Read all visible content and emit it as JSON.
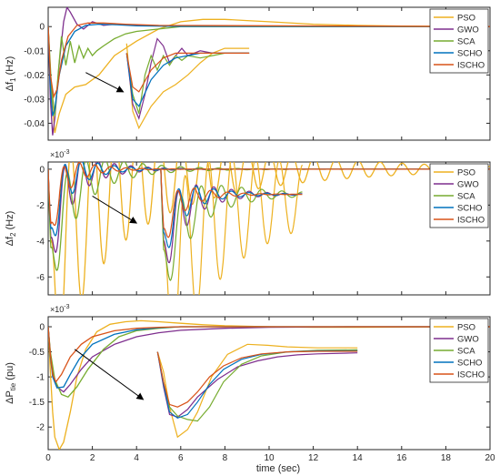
{
  "figure": {
    "xlabel": "time (sec)",
    "colors": {
      "PSO": "#EDB120",
      "GWO": "#7E2F8E",
      "SCA": "#77AC30",
      "SCHO": "#0072BD",
      "ISCHO": "#D95319"
    },
    "legend": [
      "PSO",
      "GWO",
      "SCA",
      "SCHO",
      "ISCHO"
    ]
  },
  "chart_data": [
    {
      "type": "line",
      "ylabel": "Δf1 (Hz)",
      "ylabel_main": "Δf",
      "ylabel_sub": "1",
      "ylabel_unit": " (Hz)",
      "exponent": "",
      "xlim": [
        0,
        20
      ],
      "ylim": [
        -0.047,
        0.008
      ],
      "xticks": [
        0,
        2,
        4,
        6,
        8,
        10,
        12,
        14,
        16,
        18,
        20
      ],
      "yticks": [
        0,
        -0.01,
        -0.02,
        -0.03,
        -0.04
      ],
      "ytick_labels": [
        "0",
        "-0.01",
        "-0.02",
        "-0.03",
        "-0.04"
      ],
      "legend_position": "top-right",
      "series": [
        {
          "name": "PSO",
          "x": [
            0,
            0.15,
            0.3,
            0.5,
            0.8,
            1.2,
            1.7,
            2.3,
            3,
            4,
            5,
            6,
            7,
            8,
            9,
            10,
            12,
            14,
            16,
            20
          ],
          "y": [
            0,
            -0.028,
            -0.044,
            -0.036,
            -0.028,
            -0.025,
            -0.024,
            -0.02,
            -0.012,
            -0.006,
            -0.001,
            0.002,
            0.003,
            0.003,
            0.0025,
            0.002,
            0.001,
            0.0005,
            0.0002,
            0
          ]
        },
        {
          "name": "GWO",
          "x": [
            0,
            0.1,
            0.2,
            0.3,
            0.5,
            0.7,
            0.85,
            1.0,
            1.3,
            1.6,
            2.0,
            2.5,
            3,
            4,
            6,
            20
          ],
          "y": [
            0,
            -0.03,
            -0.045,
            -0.038,
            -0.015,
            0.002,
            0.008,
            0.006,
            0.001,
            -0.001,
            0.002,
            0.0005,
            0.001,
            0.0005,
            0.0002,
            0
          ]
        },
        {
          "name": "SCA",
          "x": [
            0,
            0.15,
            0.3,
            0.45,
            0.6,
            0.8,
            1.0,
            1.2,
            1.4,
            1.6,
            1.8,
            2.0,
            2.2,
            2.5,
            3,
            3.5,
            4,
            5,
            6,
            20
          ],
          "y": [
            0,
            -0.025,
            -0.037,
            -0.02,
            -0.004,
            -0.016,
            -0.006,
            -0.015,
            -0.008,
            -0.013,
            -0.009,
            -0.012,
            -0.01,
            -0.008,
            -0.005,
            -0.003,
            -0.002,
            -0.001,
            0,
            0
          ]
        },
        {
          "name": "SCHO",
          "x": [
            0,
            0.1,
            0.2,
            0.3,
            0.5,
            0.8,
            1.2,
            1.7,
            2.3,
            3,
            4,
            6,
            20
          ],
          "y": [
            0,
            -0.025,
            -0.037,
            -0.034,
            -0.02,
            -0.008,
            -0.002,
            0.0005,
            0.001,
            0.0008,
            0.0003,
            0.0001,
            0
          ]
        },
        {
          "name": "ISCHO",
          "x": [
            0,
            0.1,
            0.25,
            0.4,
            0.6,
            0.9,
            1.3,
            1.8,
            2.5,
            3.5,
            5,
            20
          ],
          "y": [
            0,
            -0.02,
            -0.029,
            -0.026,
            -0.014,
            -0.004,
            0.0005,
            0.0015,
            0.0015,
            0.001,
            0.0005,
            0
          ]
        }
      ],
      "inset": {
        "x0": 3.55,
        "x1": 9.1,
        "series": [
          {
            "name": "PSO",
            "x": [
              0,
              0.05,
              0.1,
              0.2,
              0.3,
              0.4,
              0.5,
              0.6,
              0.7,
              0.8,
              0.9,
              1.0
            ],
            "y": [
              -0.007,
              -0.035,
              -0.042,
              -0.033,
              -0.027,
              -0.024,
              -0.02,
              -0.015,
              -0.011,
              -0.009,
              -0.009,
              -0.009
            ]
          },
          {
            "name": "GWO",
            "x": [
              0,
              0.05,
              0.1,
              0.15,
              0.2,
              0.25,
              0.3,
              0.35,
              0.4,
              0.45,
              0.5,
              0.6,
              0.7,
              0.8,
              0.9,
              1.0
            ],
            "y": [
              -0.011,
              -0.032,
              -0.038,
              -0.028,
              -0.015,
              -0.005,
              -0.008,
              -0.015,
              -0.012,
              -0.009,
              -0.012,
              -0.01,
              -0.011,
              -0.011,
              -0.011,
              -0.011
            ]
          },
          {
            "name": "SCA",
            "x": [
              0,
              0.05,
              0.1,
              0.15,
              0.2,
              0.25,
              0.3,
              0.35,
              0.4,
              0.45,
              0.5,
              0.6,
              0.7,
              0.8,
              0.9,
              1.0
            ],
            "y": [
              -0.011,
              -0.028,
              -0.036,
              -0.02,
              -0.012,
              -0.018,
              -0.012,
              -0.016,
              -0.012,
              -0.014,
              -0.012,
              -0.013,
              -0.012,
              -0.011,
              -0.011,
              -0.011
            ]
          },
          {
            "name": "SCHO",
            "x": [
              0,
              0.05,
              0.1,
              0.2,
              0.3,
              0.4,
              0.5,
              0.6,
              0.7,
              0.8,
              0.9,
              1.0
            ],
            "y": [
              -0.011,
              -0.03,
              -0.033,
              -0.022,
              -0.016,
              -0.013,
              -0.012,
              -0.011,
              -0.011,
              -0.011,
              -0.011,
              -0.011
            ]
          },
          {
            "name": "ISCHO",
            "x": [
              0,
              0.05,
              0.1,
              0.2,
              0.3,
              0.4,
              0.5,
              0.6,
              0.7,
              0.8,
              0.9,
              1.0
            ],
            "y": [
              -0.011,
              -0.025,
              -0.027,
              -0.018,
              -0.013,
              -0.011,
              -0.011,
              -0.011,
              -0.011,
              -0.011,
              -0.011,
              -0.011
            ]
          }
        ],
        "arrow": {
          "from": [
            1.7,
            -0.019
          ],
          "to": [
            3.4,
            -0.027
          ]
        }
      }
    },
    {
      "type": "line",
      "ylabel": "Δf2 (Hz)",
      "ylabel_main": "Δf",
      "ylabel_sub": "2",
      "ylabel_unit": " (Hz)",
      "exponent": "×10^-3",
      "xlim": [
        0,
        20
      ],
      "ylim": [
        -7,
        0.4
      ],
      "xticks": [
        0,
        2,
        4,
        6,
        8,
        10,
        12,
        14,
        16,
        18,
        20
      ],
      "yticks": [
        0,
        -2,
        -4,
        -6
      ],
      "ytick_labels": [
        "0",
        "-2",
        "-4",
        "-6"
      ],
      "legend_position": "top-right",
      "series": [
        {
          "name": "PSO",
          "osc": {
            "base": -7.2,
            "amp": 6.5,
            "freq": 6.0,
            "tau": 1.6,
            "drift": 0.35,
            "decay": 0.18
          }
        },
        {
          "name": "GWO",
          "osc": {
            "base": -5.5,
            "amp": 3.0,
            "freq": 8.0,
            "tau": 0.55,
            "drift": 0.0,
            "decay": 0.7
          }
        },
        {
          "name": "SCA",
          "osc": {
            "base": -6.0,
            "amp": 3.2,
            "freq": 7.0,
            "tau": 0.8,
            "drift": 0.0,
            "decay": 0.5
          }
        },
        {
          "name": "SCHO",
          "osc": {
            "base": -5.0,
            "amp": 2.5,
            "freq": 8.0,
            "tau": 0.45,
            "drift": 0.0,
            "decay": 0.8
          }
        },
        {
          "name": "ISCHO",
          "osc": {
            "base": -4.6,
            "amp": 2.0,
            "freq": 8.5,
            "tau": 0.4,
            "drift": 0.0,
            "decay": 0.9
          }
        }
      ],
      "inset": {
        "x0": 5.1,
        "x1": 11.5,
        "osc": true,
        "arrow": {
          "from": [
            2.0,
            -1.5
          ],
          "to": [
            4.0,
            -3.0
          ]
        }
      }
    },
    {
      "type": "line",
      "ylabel": "ΔPtie (pu)",
      "ylabel_main": "ΔP",
      "ylabel_sub": "tie",
      "ylabel_unit": "  (pu)",
      "exponent": "×10^-3",
      "xlim": [
        0,
        20
      ],
      "ylim": [
        -2.45,
        0.2
      ],
      "xticks": [
        0,
        2,
        4,
        6,
        8,
        10,
        12,
        14,
        16,
        18,
        20
      ],
      "yticks": [
        0,
        -0.5,
        -1,
        -1.5,
        -2
      ],
      "ytick_labels": [
        "0",
        "-0.5",
        "-1",
        "-1.5",
        "-2"
      ],
      "legend_position": "top-right",
      "series": [
        {
          "name": "PSO",
          "x": [
            0,
            0.1,
            0.2,
            0.3,
            0.5,
            0.7,
            1.0,
            1.3,
            1.7,
            2.2,
            2.8,
            3.5,
            4.2,
            5,
            6,
            7,
            8,
            10,
            12,
            14,
            20
          ],
          "y": [
            0,
            -0.9,
            -1.7,
            -2.2,
            -2.45,
            -2.3,
            -1.7,
            -1.0,
            -0.45,
            -0.1,
            0.05,
            0.1,
            0.12,
            0.1,
            0.07,
            0.04,
            0.02,
            0.0,
            -0.01,
            -0.01,
            0
          ]
        },
        {
          "name": "GWO",
          "x": [
            0,
            0.1,
            0.2,
            0.4,
            0.7,
            1.0,
            1.5,
            2,
            3,
            4,
            5,
            6,
            8,
            10,
            14,
            20
          ],
          "y": [
            0,
            -0.55,
            -0.9,
            -1.2,
            -1.3,
            -1.15,
            -0.85,
            -0.6,
            -0.35,
            -0.2,
            -0.12,
            -0.07,
            -0.03,
            -0.01,
            0,
            0
          ]
        },
        {
          "name": "SCA",
          "x": [
            0,
            0.1,
            0.3,
            0.6,
            0.9,
            1.3,
            1.8,
            2.5,
            3.2,
            4,
            5,
            6,
            8,
            10,
            14,
            20
          ],
          "y": [
            0,
            -0.5,
            -1.05,
            -1.35,
            -1.4,
            -1.2,
            -0.85,
            -0.45,
            -0.2,
            -0.08,
            -0.03,
            0,
            0.0,
            0,
            0,
            0
          ]
        },
        {
          "name": "SCHO",
          "x": [
            0,
            0.1,
            0.2,
            0.4,
            0.7,
            1.0,
            1.4,
            2,
            3,
            4,
            5,
            6,
            8,
            10,
            14,
            20
          ],
          "y": [
            0,
            -0.6,
            -1.0,
            -1.22,
            -1.2,
            -0.95,
            -0.65,
            -0.35,
            -0.15,
            -0.06,
            -0.02,
            0,
            0,
            0,
            0,
            0
          ]
        },
        {
          "name": "ISCHO",
          "x": [
            0,
            0.1,
            0.2,
            0.35,
            0.6,
            1.0,
            1.5,
            2,
            3,
            4,
            5,
            6,
            8,
            10,
            14,
            20
          ],
          "y": [
            0,
            -0.55,
            -0.95,
            -1.1,
            -0.95,
            -0.6,
            -0.35,
            -0.2,
            -0.08,
            -0.03,
            -0.01,
            0,
            0,
            0,
            0,
            0
          ]
        }
      ],
      "inset": {
        "x0": 4.95,
        "x1": 14.0,
        "series": [
          {
            "name": "PSO",
            "x": [
              0,
              0.03,
              0.06,
              0.1,
              0.15,
              0.2,
              0.27,
              0.35,
              0.45,
              0.55,
              0.65,
              0.8,
              1.0
            ],
            "y": [
              -0.5,
              -0.9,
              -1.6,
              -2.2,
              -2.05,
              -1.7,
              -1.0,
              -0.55,
              -0.35,
              -0.37,
              -0.4,
              -0.42,
              -0.42
            ]
          },
          {
            "name": "GWO",
            "x": [
              0,
              0.03,
              0.06,
              0.1,
              0.15,
              0.2,
              0.3,
              0.4,
              0.5,
              0.6,
              0.7,
              0.8,
              1.0
            ],
            "y": [
              -0.5,
              -1.2,
              -1.75,
              -1.8,
              -1.65,
              -1.4,
              -1.05,
              -0.8,
              -0.68,
              -0.6,
              -0.56,
              -0.54,
              -0.52
            ]
          },
          {
            "name": "SCA",
            "x": [
              0,
              0.03,
              0.06,
              0.1,
              0.15,
              0.2,
              0.26,
              0.33,
              0.42,
              0.52,
              0.65,
              0.8,
              1.0
            ],
            "y": [
              -0.5,
              -1.1,
              -1.6,
              -1.78,
              -1.85,
              -1.88,
              -1.6,
              -1.1,
              -0.75,
              -0.58,
              -0.5,
              -0.47,
              -0.46
            ]
          },
          {
            "name": "SCHO",
            "x": [
              0,
              0.03,
              0.06,
              0.1,
              0.15,
              0.2,
              0.26,
              0.33,
              0.42,
              0.52,
              0.65,
              0.8,
              1.0
            ],
            "y": [
              -0.5,
              -1.15,
              -1.7,
              -1.82,
              -1.75,
              -1.5,
              -1.15,
              -0.85,
              -0.65,
              -0.55,
              -0.5,
              -0.48,
              -0.48
            ]
          },
          {
            "name": "ISCHO",
            "x": [
              0,
              0.03,
              0.06,
              0.1,
              0.15,
              0.2,
              0.26,
              0.33,
              0.42,
              0.52,
              0.65,
              0.8,
              1.0
            ],
            "y": [
              -0.5,
              -1.1,
              -1.55,
              -1.6,
              -1.5,
              -1.3,
              -1.0,
              -0.78,
              -0.62,
              -0.54,
              -0.5,
              -0.49,
              -0.49
            ]
          }
        ],
        "arrow": {
          "from": [
            1.2,
            -0.45
          ],
          "to": [
            4.3,
            -1.45
          ]
        }
      }
    }
  ]
}
